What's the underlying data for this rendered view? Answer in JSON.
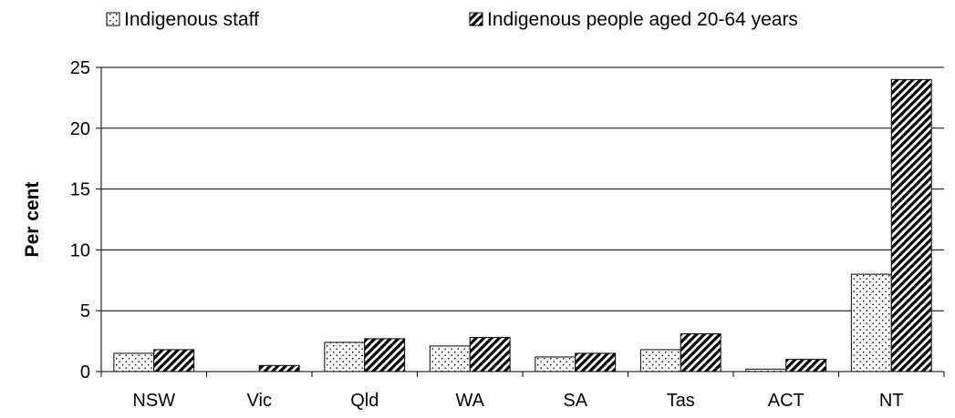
{
  "chart_data": {
    "type": "bar",
    "title": "",
    "xlabel": "",
    "ylabel": "Per cent",
    "ylim": [
      0,
      25
    ],
    "yticks": [
      "0",
      "5",
      "10",
      "15",
      "20",
      "25"
    ],
    "grid": true,
    "legend_position": "top",
    "categories": [
      "NSW",
      "Vic",
      "Qld",
      "WA",
      "SA",
      "Tas",
      "ACT",
      "NT"
    ],
    "series": [
      {
        "name": "Indigenous staff",
        "values": [
          1.5,
          0,
          2.4,
          2.1,
          1.2,
          1.8,
          0.2,
          8.0
        ],
        "pattern": "dots"
      },
      {
        "name": "Indigenous people aged 20-64 years",
        "values": [
          1.8,
          0.5,
          2.7,
          2.8,
          1.5,
          3.1,
          1.0,
          24.0
        ],
        "pattern": "diagonal-hatch"
      }
    ],
    "colors": {
      "axis": "#000000",
      "grid": "#000000",
      "bar_fill": "#ffffff",
      "bar_stroke": "#000000"
    }
  }
}
